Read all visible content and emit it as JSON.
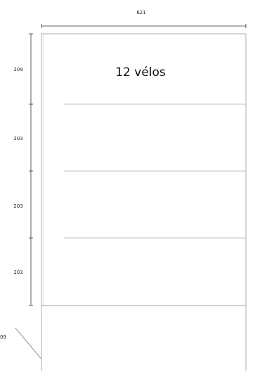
{
  "drawing": {
    "title": "12 vélos",
    "dimensions": {
      "width": "621",
      "heights": [
        "209",
        "203",
        "203",
        "203"
      ],
      "bottom_partial": "09"
    },
    "colors": {
      "outline": "#999999",
      "divider": "#aaaaaa",
      "dimension_line": "#333333",
      "text": "#111111"
    }
  }
}
